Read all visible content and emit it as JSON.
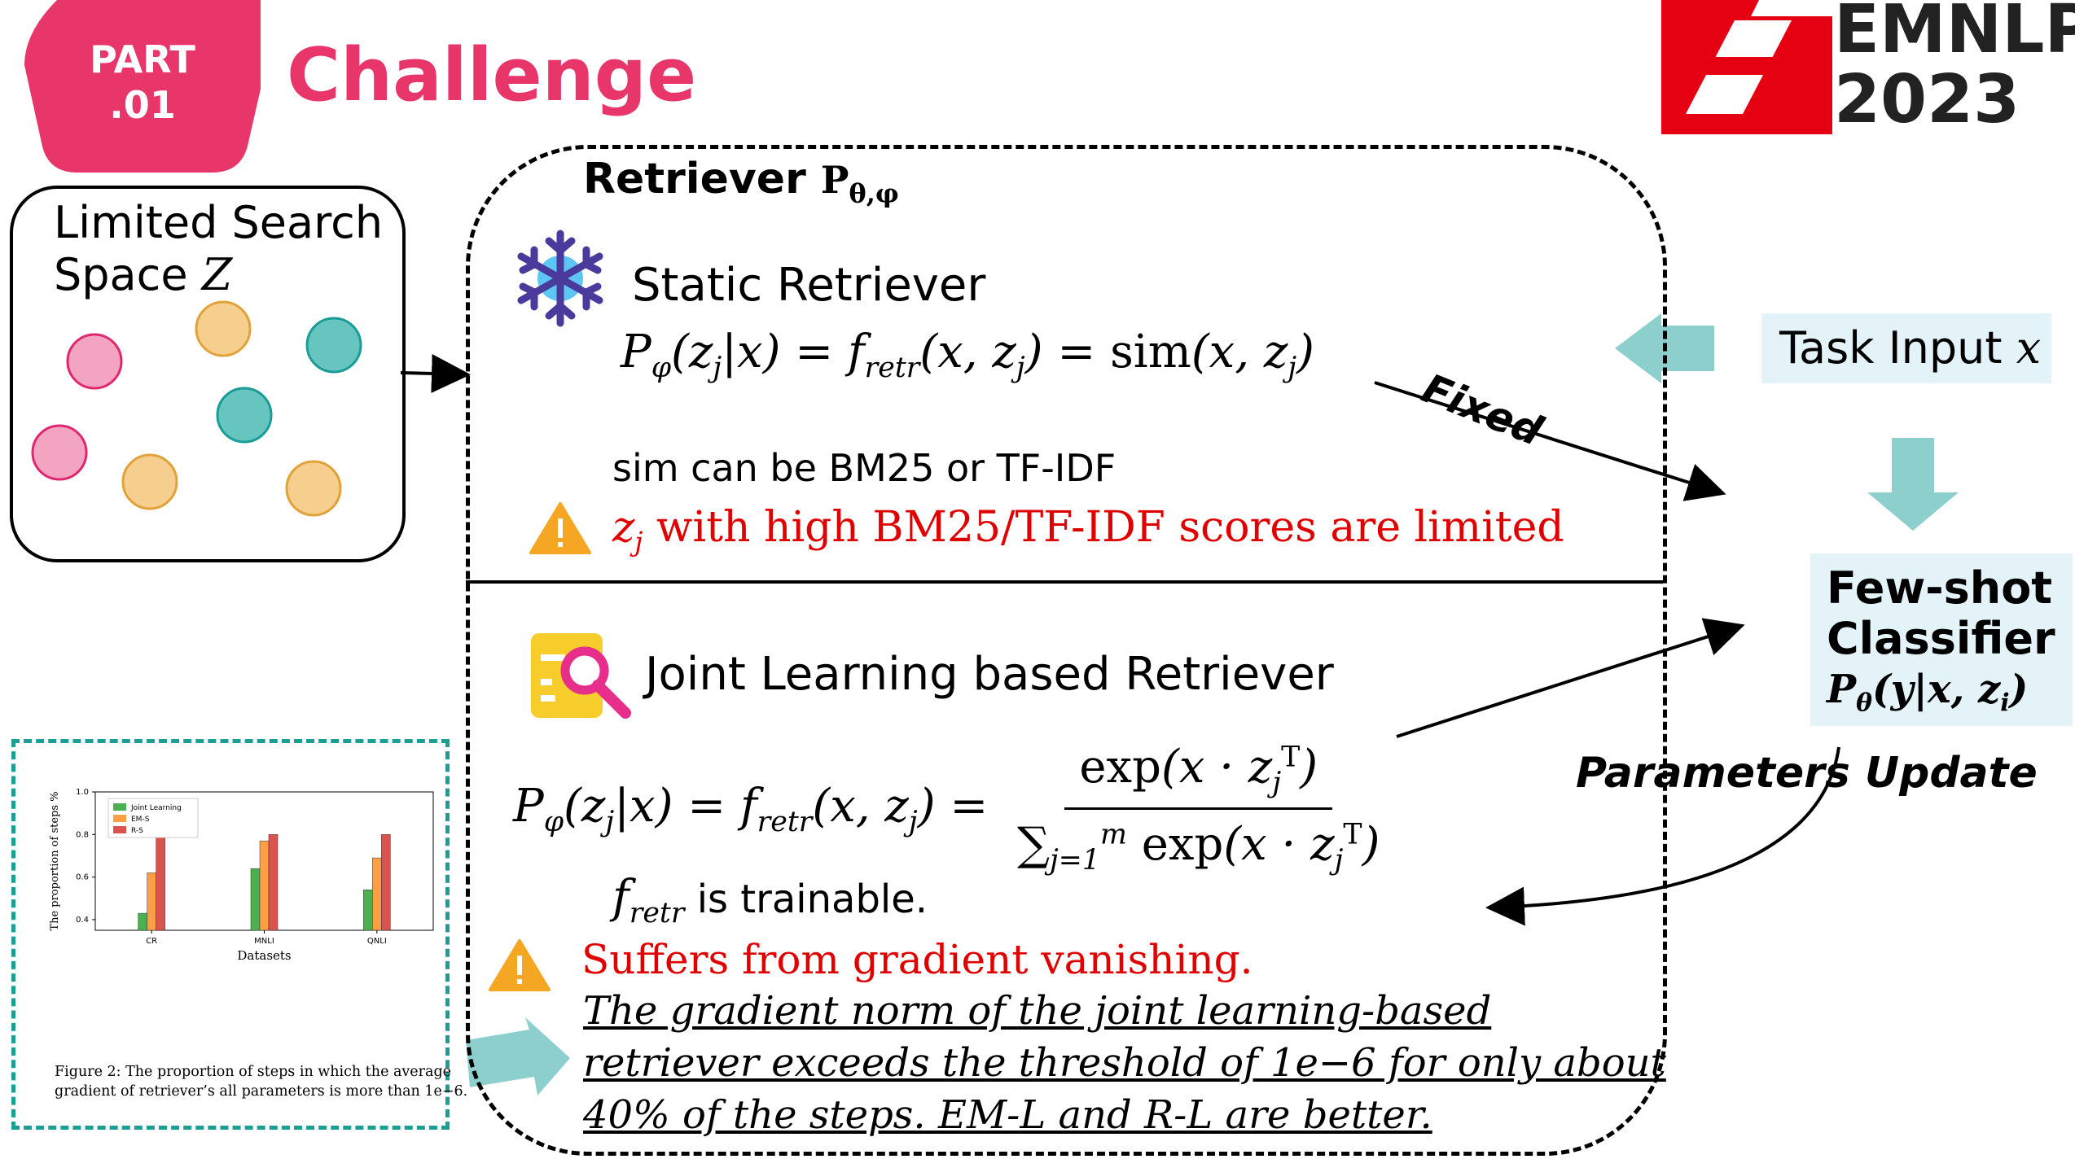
{
  "header": {
    "part_label_line1": "PART",
    "part_label_line2": ".01",
    "title": "Challenge",
    "accent_color": "#e8366b",
    "logo": {
      "line1": "EMNLP",
      "line2": "2023",
      "logo_color": "#e50012"
    }
  },
  "search_space": {
    "label_line1": "Limited Search",
    "label_line2": "Space",
    "symbol": "Z"
  },
  "retriever_box": {
    "title": "Retriever",
    "subscript": "P",
    "subscript_params": "θ,φ",
    "static": {
      "icon": "snowflake-icon",
      "heading": "Static Retriever",
      "formula": "P_φ(z_j|x) = f_retr(x, z_j) = sim(x, z_j)",
      "note": "sim can be BM25 or TF-IDF",
      "warning": "z_j with high BM25/TF-IDF scores are limited"
    },
    "joint": {
      "icon": "search-document-icon",
      "heading": "Joint Learning based Retriever",
      "formula": "P_φ(z_j|x) = f_retr(x, z_j) = exp(x·z_j^T) / Σ_{j=1}^{m} exp(x·z_j^T)",
      "trainable_note": " is trainable.",
      "warning": "Suffers from gradient vanishing.",
      "detail_line1": "The gradient norm of the joint learning-based",
      "detail_line2": "retriever exceeds the threshold of 1e−6 for only about",
      "detail_line3": "40% of the steps. EM-L and R-L are better."
    }
  },
  "right_panel": {
    "task_input_label": "Task Input",
    "task_input_var": "x",
    "classifier_line1": "Few-shot",
    "classifier_line2": "Classifier",
    "classifier_formula": "Pθ(y|x, zi)",
    "fixed_label": "Fixed",
    "update_label": "Parameters Update"
  },
  "inset_figure": {
    "caption_line1": "Figure 2: The proportion of steps in which the average",
    "caption_line2": "gradient of retriever’s all parameters is more than 1e−6."
  },
  "chart_data": {
    "type": "bar",
    "categories": [
      "CR",
      "MNLI",
      "QNLI"
    ],
    "series": [
      {
        "name": "Joint Learning",
        "values": [
          0.43,
          0.64,
          0.54
        ],
        "color": "#4caf50"
      },
      {
        "name": "EM-S",
        "values": [
          0.62,
          0.77,
          0.69
        ],
        "color": "#ff9f43"
      },
      {
        "name": "R-S",
        "values": [
          0.8,
          0.8,
          0.8
        ],
        "color": "#d9534f"
      }
    ],
    "xlabel": "Datasets",
    "ylabel": "The proportion of steps %",
    "ylim": [
      0.35,
      1.0
    ],
    "yticks": [
      "0.4",
      "0.6",
      "0.8",
      "1.0"
    ],
    "legend": "top-left"
  }
}
